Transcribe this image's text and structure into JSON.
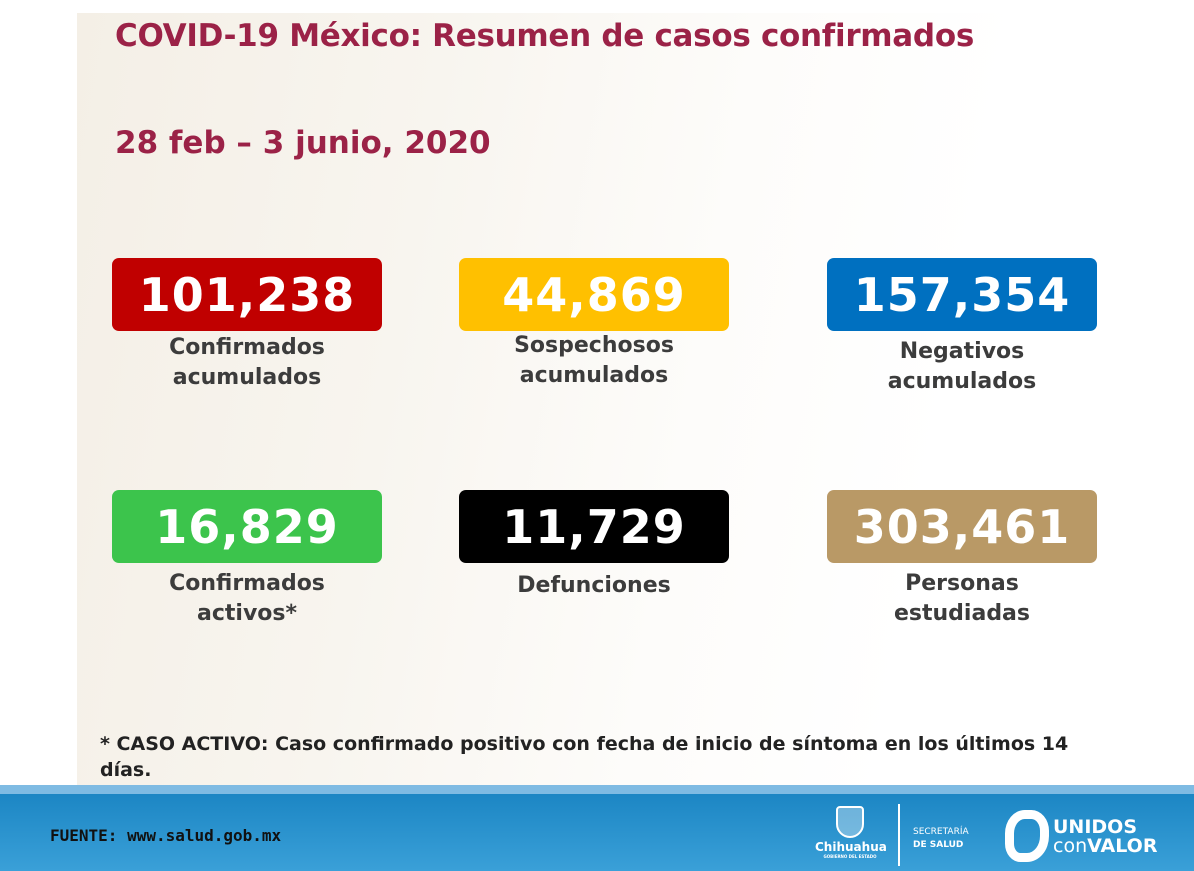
{
  "title": "COVID-19 México: Resumen de casos confirmados",
  "date_range": "28 feb – 3 junio, 2020",
  "stats": [
    {
      "value": "101,238",
      "label1": "Confirmados",
      "label2": "acumulados",
      "color": "#c00000"
    },
    {
      "value": "44,869",
      "label1": "Sospechosos",
      "label2": "acumulados",
      "color": "#ffc000"
    },
    {
      "value": "157,354",
      "label1": "Negativos",
      "label2": "acumulados",
      "color": "#0070c0"
    },
    {
      "value": "16,829",
      "label1": "Confirmados",
      "label2": "activos*",
      "color": "#3cc44c"
    },
    {
      "value": "11,729",
      "label1": "Defunciones",
      "label2": "",
      "color": "#000000"
    },
    {
      "value": "303,461",
      "label1": "Personas",
      "label2": "estudiadas",
      "color": "#b99966"
    }
  ],
  "footnote": "* CASO ACTIVO: Caso confirmado positivo con fecha de inicio de síntoma en los últimos 14 días.",
  "footer": {
    "source": "FUENTE: www.salud.gob.mx",
    "chihuahua": "Chihuahua",
    "gobierno": "GOBIERNO DEL ESTADO",
    "secretaria": "SECRETARÍA",
    "salud": "DE SALUD",
    "unidos": "UNIDOS",
    "con": "con",
    "valor": "VALOR"
  }
}
